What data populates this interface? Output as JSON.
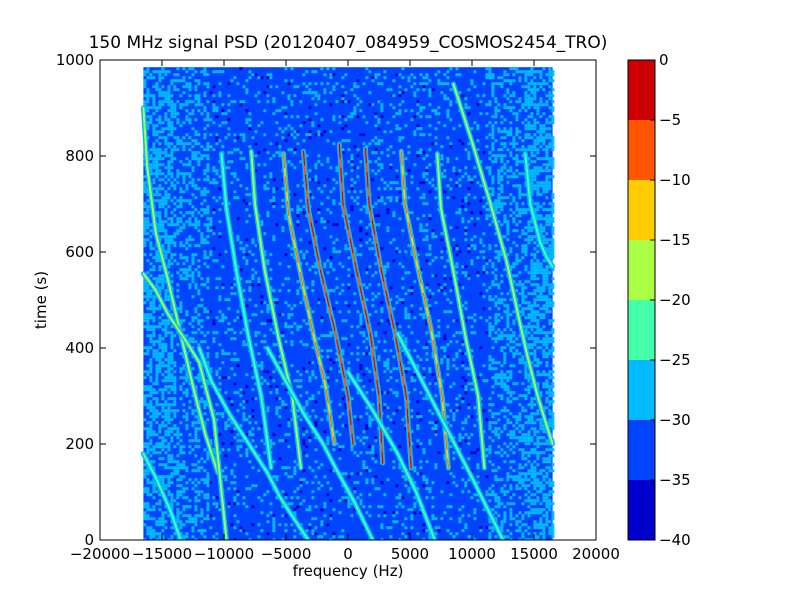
{
  "chart_data": {
    "type": "heatmap",
    "title": "150 MHz signal PSD (20120407_084959_COSMOS2454_TRO)",
    "xlabel": "frequency (Hz)",
    "ylabel": "time (s)",
    "xlim": [
      -20000,
      20000
    ],
    "ylim": [
      0,
      1000
    ],
    "x_ticks": [
      -20000,
      -15000,
      -10000,
      -5000,
      0,
      5000,
      10000,
      15000,
      20000
    ],
    "y_ticks": [
      0,
      200,
      400,
      600,
      800,
      1000
    ],
    "data_extent": {
      "x": [
        -16500,
        16500
      ],
      "y": [
        0,
        985
      ]
    },
    "grid": false,
    "background_level_db": -32,
    "colorbar": {
      "levels": [
        -40,
        -35,
        -30,
        -25,
        -20,
        -15,
        -10,
        -5,
        0
      ],
      "tick_labels": [
        "0",
        "−5",
        "−10",
        "−15",
        "−20",
        "−25",
        "−30",
        "−35",
        "−40"
      ],
      "colors": [
        "#0000cc",
        "#0044ff",
        "#00bbff",
        "#44ffaa",
        "#aaff44",
        "#ffcc00",
        "#ff5500",
        "#cc0000"
      ]
    },
    "series": [
      {
        "x": [
          -16500,
          -16200,
          -15500,
          -14500,
          -13500,
          -12500,
          -11500,
          -10500
        ],
        "y": [
          900,
          780,
          640,
          540,
          430,
          320,
          220,
          140
        ],
        "peak_db": -18
      },
      {
        "x": [
          -16500,
          -15500,
          -14500,
          -13200,
          -12000,
          -10800,
          -9800
        ],
        "y": [
          555,
          520,
          470,
          420,
          370,
          250,
          0
        ],
        "peak_db": -17
      },
      {
        "x": [
          -16500,
          -15500,
          -14300,
          -13500
        ],
        "y": [
          180,
          130,
          60,
          0
        ],
        "peak_db": -22
      },
      {
        "x": [
          -10200,
          -9800,
          -9000,
          -8000,
          -7000,
          -6200
        ],
        "y": [
          805,
          690,
          560,
          420,
          300,
          150
        ],
        "peak_db": -22
      },
      {
        "x": [
          -7800,
          -7500,
          -6700,
          -5600,
          -4500,
          -3800
        ],
        "y": [
          810,
          700,
          560,
          420,
          300,
          150
        ],
        "peak_db": -20
      },
      {
        "x": [
          -5200,
          -4800,
          -3800,
          -2800,
          -1800,
          -1100
        ],
        "y": [
          805,
          680,
          550,
          430,
          320,
          200
        ],
        "peak_db": -12
      },
      {
        "x": [
          -3600,
          -3200,
          -2200,
          -1000,
          0,
          400
        ],
        "y": [
          810,
          690,
          560,
          430,
          300,
          200
        ],
        "peak_db": -10
      },
      {
        "x": [
          -700,
          -400,
          700,
          1800,
          2500,
          2800
        ],
        "y": [
          825,
          700,
          560,
          430,
          300,
          160
        ],
        "peak_db": -8
      },
      {
        "x": [
          1400,
          1700,
          2700,
          3800,
          4700,
          5100
        ],
        "y": [
          815,
          700,
          560,
          430,
          300,
          150
        ],
        "peak_db": -10
      },
      {
        "x": [
          4300,
          4600,
          5600,
          6700,
          7600,
          8100
        ],
        "y": [
          810,
          700,
          570,
          440,
          300,
          150
        ],
        "peak_db": -12
      },
      {
        "x": [
          7200,
          7500,
          8500,
          9500,
          10500,
          11000
        ],
        "y": [
          805,
          690,
          560,
          420,
          300,
          150
        ],
        "peak_db": -20
      },
      {
        "x": [
          14300,
          14700,
          15500,
          16000,
          16500
        ],
        "y": [
          805,
          700,
          620,
          590,
          570
        ],
        "peak_db": -22
      },
      {
        "x": [
          8500,
          10000,
          11500,
          12800,
          13800,
          14500,
          15300,
          16000,
          16500
        ],
        "y": [
          950,
          830,
          700,
          580,
          460,
          380,
          300,
          240,
          200
        ],
        "peak_db": -20
      },
      {
        "x": [
          -12000,
          -11000,
          -9500,
          -8000,
          -6500,
          -5500,
          -4500,
          -3200
        ],
        "y": [
          400,
          330,
          260,
          200,
          140,
          90,
          50,
          0
        ],
        "peak_db": -24
      },
      {
        "x": [
          -6500,
          -5000,
          -3500,
          -2000,
          -1000,
          500,
          2000
        ],
        "y": [
          400,
          330,
          260,
          200,
          150,
          80,
          0
        ],
        "peak_db": -24
      },
      {
        "x": [
          0,
          2000,
          4000,
          5500,
          7000
        ],
        "y": [
          350,
          270,
          180,
          100,
          0
        ],
        "peak_db": -24
      },
      {
        "x": [
          4000,
          6000,
          8000,
          10000,
          12500
        ],
        "y": [
          430,
          330,
          230,
          130,
          0
        ],
        "peak_db": -23
      }
    ]
  }
}
